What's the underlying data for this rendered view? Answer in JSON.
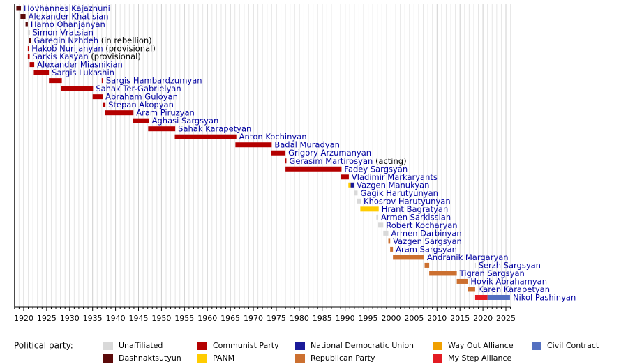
{
  "chart_data": {
    "type": "timeline",
    "parties": [
      {
        "name": "Unaffiliated",
        "color": "#d9d9d9"
      },
      {
        "name": "Dashnaktsutyun",
        "color": "#5c0a0a"
      },
      {
        "name": "Communist Party",
        "color": "#b40000"
      },
      {
        "name": "PANM",
        "color": "#ffcc00"
      },
      {
        "name": "National Democratic Union",
        "color": "#1a1a99"
      },
      {
        "name": "Republican Party",
        "color": "#cc7030"
      },
      {
        "name": "Way Out Alliance",
        "color": "#f0a000"
      },
      {
        "name": "My Step Alliance",
        "color": "#e31b23"
      },
      {
        "name": "Civil Contract",
        "color": "#5470c0"
      }
    ],
    "legend_title": "Political party:",
    "rows": [
      {
        "name": "Hovhannes Kajaznuni",
        "segments": [
          {
            "start": 1918.4,
            "end": 1919.4,
            "party": 1
          }
        ]
      },
      {
        "name": "Alexander Khatisian",
        "segments": [
          {
            "start": 1919.3,
            "end": 1920.4,
            "party": 1
          }
        ]
      },
      {
        "name": "Hamo Ohanjanyan",
        "segments": [
          {
            "start": 1920.4,
            "end": 1920.9,
            "party": 1
          }
        ]
      },
      {
        "name": "Simon Vratsian",
        "segments": [
          {
            "start": 1920.9,
            "end": 1921.0,
            "party": 0
          },
          {
            "start": 1921.2,
            "end": 1921.3,
            "party": 0
          }
        ]
      },
      {
        "name": "Garegin Nzhdeh",
        "note": "(in rebellion)",
        "segments": [
          {
            "start": 1921.2,
            "end": 1921.6,
            "party": 1
          }
        ]
      },
      {
        "name": "Hakob Nurijanyan",
        "note": "(provisional)",
        "segments": [
          {
            "start": 1920.9,
            "end": 1921.1,
            "party": 2
          }
        ]
      },
      {
        "name": "Sarkis Kasyan",
        "note": "(provisional)",
        "segments": [
          {
            "start": 1920.9,
            "end": 1921.3,
            "party": 2
          }
        ]
      },
      {
        "name": "Alexander Miasnikian",
        "segments": [
          {
            "start": 1921.3,
            "end": 1922.3,
            "party": 2
          }
        ]
      },
      {
        "name": "Sargis Lukashin",
        "segments": [
          {
            "start": 1922.2,
            "end": 1925.5,
            "party": 2
          }
        ]
      },
      {
        "name": "Sargis Hambardzumyan",
        "segments": [
          {
            "start": 1925.5,
            "end": 1928.3,
            "party": 2
          },
          {
            "start": 1937.0,
            "end": 1937.3,
            "party": 2
          }
        ]
      },
      {
        "name": "Sahak Ter-Gabrielyan",
        "segments": [
          {
            "start": 1928.1,
            "end": 1935.1,
            "party": 2
          }
        ]
      },
      {
        "name": "Abraham Guloyan",
        "segments": [
          {
            "start": 1935.0,
            "end": 1937.2,
            "party": 2
          }
        ]
      },
      {
        "name": "Stepan Akopyan",
        "segments": [
          {
            "start": 1937.2,
            "end": 1937.8,
            "party": 2
          }
        ]
      },
      {
        "name": "Aram Piruzyan",
        "segments": [
          {
            "start": 1937.7,
            "end": 1943.9,
            "party": 2
          }
        ]
      },
      {
        "name": "Aghasi Sargsyan",
        "segments": [
          {
            "start": 1943.8,
            "end": 1947.3,
            "party": 2
          }
        ]
      },
      {
        "name": "Sahak Karapetyan",
        "segments": [
          {
            "start": 1947.1,
            "end": 1953.0,
            "party": 2
          }
        ]
      },
      {
        "name": "Anton Kochinyan",
        "segments": [
          {
            "start": 1952.9,
            "end": 1966.3,
            "party": 2
          }
        ]
      },
      {
        "name": "Badal Muradyan",
        "segments": [
          {
            "start": 1966.1,
            "end": 1974.0,
            "party": 2
          }
        ]
      },
      {
        "name": "Grigory Arzumanyan",
        "segments": [
          {
            "start": 1973.9,
            "end": 1977.0,
            "party": 2
          }
        ]
      },
      {
        "name": "Gerasim Martirosyan",
        "note": "(acting)",
        "segments": [
          {
            "start": 1976.9,
            "end": 1977.2,
            "party": 2
          }
        ]
      },
      {
        "name": "Fadey Sargsyan",
        "segments": [
          {
            "start": 1977.0,
            "end": 1989.2,
            "party": 2
          }
        ]
      },
      {
        "name": "Vladimir Markaryants",
        "segments": [
          {
            "start": 1989.1,
            "end": 1990.8,
            "party": 2
          }
        ]
      },
      {
        "name": "Vazgen Manukyan",
        "segments": [
          {
            "start": 1990.7,
            "end": 1991.2,
            "party": 3
          },
          {
            "start": 1991.2,
            "end": 1991.9,
            "party": 4
          }
        ]
      },
      {
        "name": "Gagik Harutyunyan",
        "segments": [
          {
            "start": 1991.9,
            "end": 1992.7,
            "party": 0
          }
        ]
      },
      {
        "name": "Khosrov Harutyunyan",
        "segments": [
          {
            "start": 1992.6,
            "end": 1993.4,
            "party": 0
          }
        ]
      },
      {
        "name": "Hrant Bagratyan",
        "segments": [
          {
            "start": 1993.3,
            "end": 1997.3,
            "party": 3
          }
        ]
      },
      {
        "name": "Armen Sarkissian",
        "segments": [
          {
            "start": 1996.8,
            "end": 1997.2,
            "party": 0
          }
        ]
      },
      {
        "name": "Robert Kocharyan",
        "segments": [
          {
            "start": 1997.2,
            "end": 1998.3,
            "party": 0
          }
        ]
      },
      {
        "name": "Armen Darbinyan",
        "segments": [
          {
            "start": 1998.3,
            "end": 1999.4,
            "party": 0
          }
        ]
      },
      {
        "name": "Vazgen Sargsyan",
        "segments": [
          {
            "start": 1999.4,
            "end": 1999.8,
            "party": 5
          }
        ]
      },
      {
        "name": "Aram Sargsyan",
        "segments": [
          {
            "start": 1999.8,
            "end": 2000.4,
            "party": 5
          }
        ]
      },
      {
        "name": "Andranik Margaryan",
        "segments": [
          {
            "start": 2000.4,
            "end": 2007.2,
            "party": 5
          }
        ]
      },
      {
        "name": "Serzh Sargsyan",
        "segments": [
          {
            "start": 2007.3,
            "end": 2008.3,
            "party": 5
          },
          {
            "start": 2018.3,
            "end": 2018.4,
            "party": 0
          }
        ]
      },
      {
        "name": "Tigran Sargsyan",
        "segments": [
          {
            "start": 2008.3,
            "end": 2014.3,
            "party": 5
          }
        ]
      },
      {
        "name": "Hovik Abrahamyan",
        "segments": [
          {
            "start": 2014.3,
            "end": 2016.7,
            "party": 5
          }
        ]
      },
      {
        "name": "Karen Karapetyan",
        "segments": [
          {
            "start": 2016.7,
            "end": 2018.3,
            "party": 5
          }
        ]
      },
      {
        "name": "Nikol Pashinyan",
        "segments": [
          {
            "start": 2018.3,
            "end": 2021.0,
            "party": 7
          },
          {
            "start": 2021.0,
            "end": 2025.9,
            "party": 8
          }
        ]
      }
    ],
    "xlim": [
      1918,
      2026
    ],
    "xticks": [
      1920,
      1925,
      1930,
      1935,
      1940,
      1945,
      1950,
      1955,
      1960,
      1965,
      1970,
      1975,
      1980,
      1985,
      1990,
      1995,
      2000,
      2005,
      2010,
      2015,
      2020,
      2025
    ],
    "minor_xticks": [
      1918,
      1919,
      1921,
      1922,
      1923,
      1924,
      1926,
      1927,
      1928,
      1929,
      1931,
      1932,
      1933,
      1934,
      1936,
      1937,
      1938,
      1939,
      1941,
      1942,
      1943,
      1944,
      1946,
      1947,
      1948,
      1949,
      1951,
      1952,
      1953,
      1954,
      1956,
      1957,
      1958,
      1959,
      1961,
      1962,
      1963,
      1964,
      1966,
      1967,
      1968,
      1969,
      1971,
      1972,
      1973,
      1974,
      1976,
      1977,
      1978,
      1979,
      1981,
      1982,
      1983,
      1984,
      1986,
      1987,
      1988,
      1989,
      1991,
      1992,
      1993,
      1994,
      1996,
      1997,
      1998,
      1999,
      2001,
      2002,
      2003,
      2004,
      2006,
      2007,
      2008,
      2009,
      2011,
      2012,
      2013,
      2014,
      2016,
      2017,
      2018,
      2019,
      2021,
      2022,
      2023,
      2024,
      2026
    ],
    "grid": true
  }
}
